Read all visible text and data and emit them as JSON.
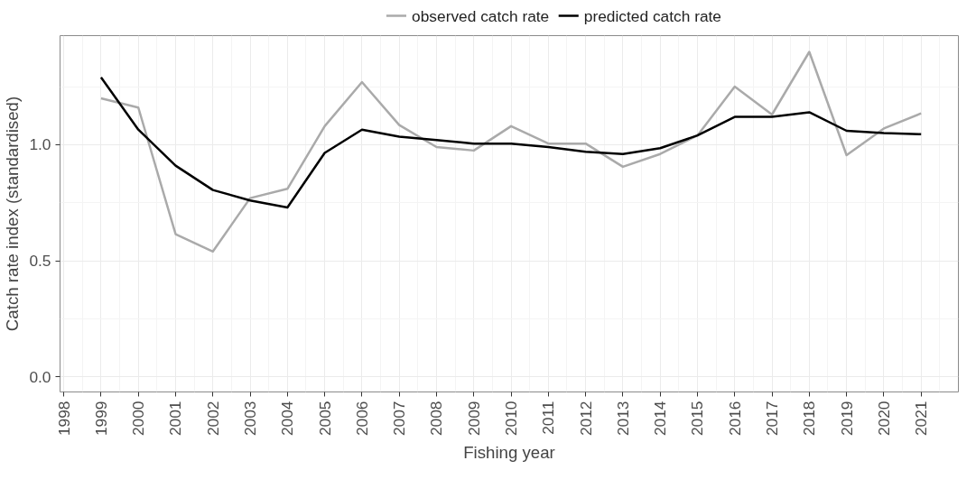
{
  "chart_data": {
    "type": "line",
    "xlabel": "Fishing year",
    "ylabel": "Catch rate index (standardised)",
    "x": [
      1999,
      2000,
      2001,
      2002,
      2003,
      2004,
      2005,
      2006,
      2007,
      2008,
      2009,
      2010,
      2011,
      2012,
      2013,
      2014,
      2015,
      2016,
      2017,
      2018,
      2019,
      2020,
      2021
    ],
    "series": [
      {
        "name": "observed catch rate",
        "color": "#aaaaaa",
        "values": [
          1.2,
          1.16,
          0.615,
          0.54,
          0.77,
          0.81,
          1.08,
          1.27,
          1.085,
          0.99,
          0.975,
          1.08,
          1.005,
          1.005,
          0.905,
          0.96,
          1.04,
          1.25,
          1.13,
          1.4,
          0.955,
          1.07,
          1.135
        ]
      },
      {
        "name": "predicted catch rate",
        "color": "#000000",
        "values": [
          1.29,
          1.065,
          0.91,
          0.805,
          0.76,
          0.73,
          0.965,
          1.065,
          1.035,
          1.02,
          1.005,
          1.005,
          0.99,
          0.97,
          0.96,
          0.985,
          1.04,
          1.12,
          1.12,
          1.14,
          1.06,
          1.05,
          1.045
        ]
      }
    ],
    "xlim": [
      1997.9,
      2022.0
    ],
    "ylim": [
      -0.065,
      1.47
    ],
    "xticks": [
      1998,
      1999,
      2000,
      2001,
      2002,
      2003,
      2004,
      2005,
      2006,
      2007,
      2008,
      2009,
      2010,
      2011,
      2012,
      2013,
      2014,
      2015,
      2016,
      2017,
      2018,
      2019,
      2020,
      2021
    ],
    "yticks": [
      {
        "value": 0,
        "label": "0.0"
      },
      {
        "value": 0.5,
        "label": "0.5"
      },
      {
        "value": 1,
        "label": "1.0"
      }
    ],
    "grid": true,
    "legend": "top",
    "line_style": "solid",
    "marker": "none"
  }
}
